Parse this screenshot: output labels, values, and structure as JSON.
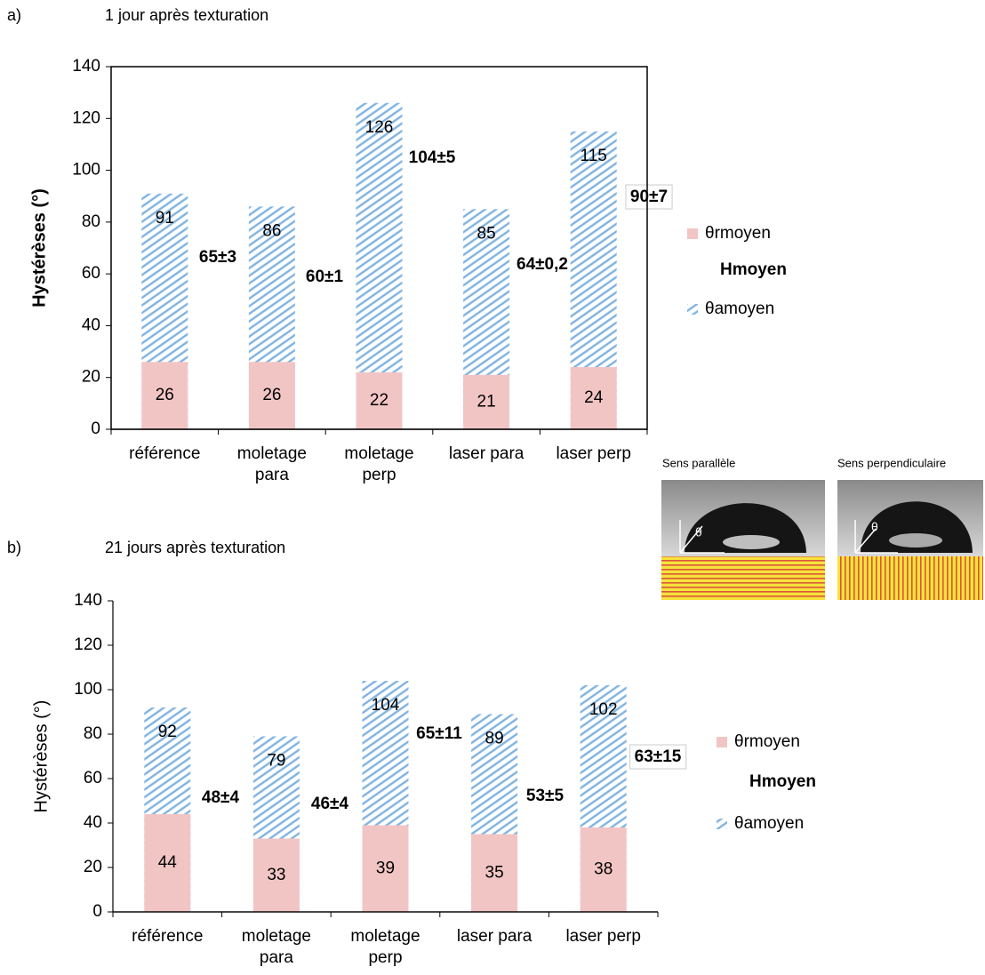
{
  "chart_data": [
    {
      "type": "bar",
      "panel": "a)",
      "title": "1 jour après texturation",
      "ylabel": "Hystérèses (°)",
      "ylabel_weight": "bold",
      "frame": true,
      "categories": [
        "référence",
        "moletage para",
        "moletage perp",
        "laser para",
        "laser perp"
      ],
      "series": [
        {
          "name": "θrmoyen",
          "color": "#f2c5c5",
          "values": [
            26,
            26,
            22,
            21,
            24
          ]
        },
        {
          "name": "θamoyen",
          "color": "#7fb3e2",
          "pattern": "hatch",
          "values": [
            91,
            86,
            126,
            85,
            115
          ]
        }
      ],
      "hmoyen": {
        "name": "Hmoyen",
        "labels": [
          "65±3",
          "60±1",
          "104±5",
          "64±0,2",
          "90±7"
        ]
      },
      "ylim": [
        0,
        140
      ],
      "yticks": [
        0,
        20,
        40,
        60,
        80,
        100,
        120,
        140
      ]
    },
    {
      "type": "bar",
      "panel": "b)",
      "title": "21 jours après texturation",
      "ylabel": "Hystérèses (°)",
      "ylabel_weight": "normal",
      "frame": false,
      "categories": [
        "référence",
        "moletage para",
        "moletage perp",
        "laser para",
        "laser perp"
      ],
      "series": [
        {
          "name": "θrmoyen",
          "color": "#f2c5c5",
          "values": [
            44,
            33,
            39,
            35,
            38
          ]
        },
        {
          "name": "θamoyen",
          "color": "#7fb3e2",
          "pattern": "hatch",
          "values": [
            92,
            79,
            104,
            89,
            102
          ]
        }
      ],
      "hmoyen": {
        "name": "Hmoyen",
        "labels": [
          "48±4",
          "46±4",
          "65±11",
          "53±5",
          "63±15"
        ]
      },
      "ylim": [
        0,
        140
      ],
      "yticks": [
        0,
        20,
        40,
        60,
        80,
        100,
        120,
        140
      ]
    }
  ],
  "images": {
    "parallel": {
      "caption": "Sens parallèle",
      "angle_label": "θ"
    },
    "perpendicular": {
      "caption": "Sens perpendiculaire",
      "angle_label": "θ"
    }
  }
}
